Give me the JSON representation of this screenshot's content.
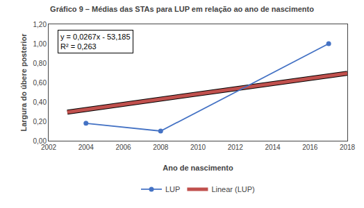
{
  "chart_data": {
    "type": "line",
    "title": "Gráfico 9 – Médias das STAs para LUP em relação ao ano de nascimento",
    "x_label": "Ano de nascimento",
    "y_label": "Largura do úbere posterior",
    "series": [
      {
        "name": "LUP",
        "type": "line",
        "marker": "circle",
        "color": "#4472C4",
        "x": [
          2004,
          2008,
          2017
        ],
        "values": [
          0.18,
          0.1,
          1.0
        ]
      },
      {
        "name": "Linear (LUP)",
        "type": "line",
        "color": "#C0504D",
        "x": [
          2003,
          2018
        ],
        "values": [
          0.2951,
          0.6956
        ]
      }
    ],
    "xlim": [
      2002,
      2018
    ],
    "ylim": [
      0.0,
      1.2
    ],
    "xticks": [
      2002,
      2004,
      2006,
      2008,
      2010,
      2012,
      2014,
      2016,
      2018
    ],
    "yticks": [
      {
        "value": 0.0,
        "label": "0,00"
      },
      {
        "value": 0.2,
        "label": "0,20"
      },
      {
        "value": 0.4,
        "label": "0,40"
      },
      {
        "value": 0.6,
        "label": "0,60"
      },
      {
        "value": 0.8,
        "label": "0,80"
      },
      {
        "value": 1.0,
        "label": "1,00"
      },
      {
        "value": 1.2,
        "label": "1,20"
      }
    ],
    "annotations": [
      "y = 0,0267x - 53,185",
      "R² = 0,263"
    ],
    "legend": "bottom",
    "grid": false
  }
}
